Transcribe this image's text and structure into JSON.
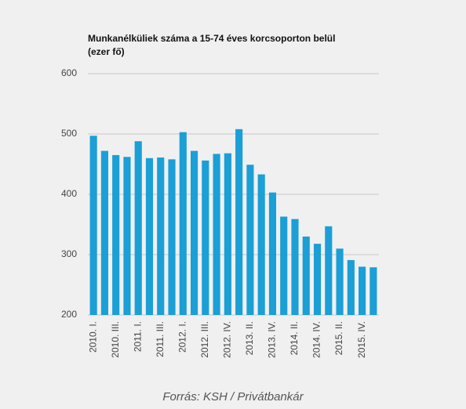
{
  "chart_data": {
    "type": "bar",
    "title": "Munkanélküliek száma a 15-74 éves korcsoporton belül",
    "subtitle": "(ezer fő)",
    "categories": [
      "2010. I.",
      null,
      "2010. III.",
      null,
      "2011. I.",
      null,
      "2011. III.",
      null,
      "2012. I.",
      null,
      "2012. III.",
      null,
      "2012. IV.",
      null,
      "2013. II.",
      null,
      "2013. IV.",
      null,
      "2014. II.",
      null,
      "2014. IV.",
      null,
      "2015. II.",
      null,
      "2015. IV.",
      null
    ],
    "values": [
      497,
      472,
      465,
      462,
      488,
      460,
      461,
      458,
      503,
      472,
      456,
      467,
      468,
      508,
      449,
      433,
      403,
      363,
      359,
      330,
      318,
      347,
      310,
      291,
      280,
      279
    ],
    "color": "#1a9fd6",
    "ylim": [
      200,
      600
    ],
    "yticks": [
      200,
      300,
      400,
      500,
      600
    ],
    "grid": true,
    "source": "Forrás: KSH / Privátbankár"
  }
}
